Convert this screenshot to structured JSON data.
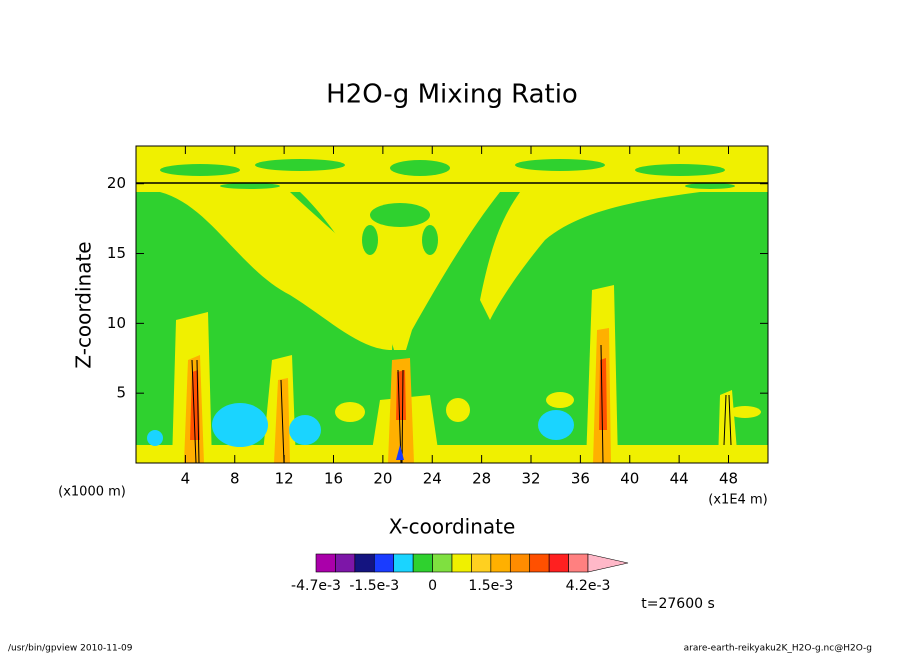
{
  "chart_data": {
    "type": "contour",
    "title": "H2O-g Mixing Ratio",
    "x_label": "X-coordinate",
    "y_label": "Z-coordinate",
    "y_unit_label": "(x1000 m)",
    "x_unit_label": "(x1E4 m)",
    "xlim": [
      0,
      51.2
    ],
    "ylim": [
      0,
      22.7
    ],
    "xticks": [
      4,
      8,
      12,
      16,
      20,
      24,
      28,
      32,
      36,
      40,
      44,
      48
    ],
    "yticks": [
      5,
      10,
      15,
      20
    ],
    "colorbar": {
      "levels": [
        -0.0047,
        -0.0031,
        -0.002,
        -0.0015,
        -0.001,
        -0.0005,
        0,
        0.0005,
        0.001,
        0.0015,
        0.002,
        0.0026,
        0.0031,
        0.0037,
        0.0042
      ],
      "colors": [
        "#aa00aa",
        "#7d16a8",
        "#141480",
        "#1a3cff",
        "#1ad4ff",
        "#2fd12f",
        "#7fe040",
        "#f0f000",
        "#ffd020",
        "#ffb000",
        "#ff8c00",
        "#ff5000",
        "#ff2020",
        "#ff8080",
        "#ffb8c8"
      ],
      "labels": [
        {
          "value": -0.0047,
          "label": "-4.7e-3"
        },
        {
          "value": -0.0015,
          "label": "-1.5e-3"
        },
        {
          "value": 0,
          "label": "0"
        },
        {
          "value": 0.0015,
          "label": "1.5e-3"
        },
        {
          "value": 0.0042,
          "label": "4.2e-3"
        }
      ]
    },
    "time_label": "t=27600 s",
    "footer_left": "/usr/bin/gpview   2010-11-09",
    "footer_right": "arare-earth-reikyaku2K_H2O-g.nc@H2O-g"
  }
}
